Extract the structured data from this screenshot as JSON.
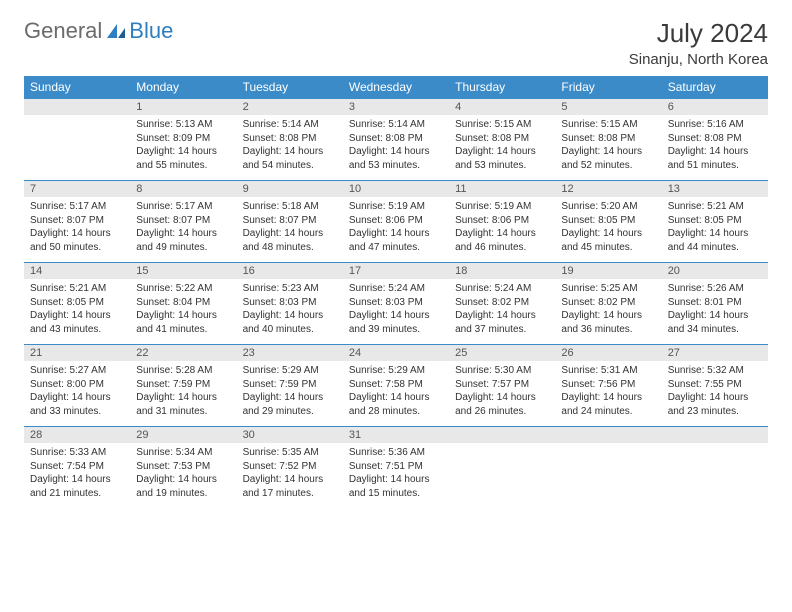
{
  "logo": {
    "general": "General",
    "blue": "Blue"
  },
  "title": "July 2024",
  "location": "Sinanju, North Korea",
  "colors": {
    "header_bg": "#3b8bc9",
    "header_text": "#ffffff",
    "daynum_bg": "#e8e8e8",
    "border": "#3b8bc9",
    "logo_gray": "#6b6b6b",
    "logo_blue": "#2e7fc1"
  },
  "dow": [
    "Sunday",
    "Monday",
    "Tuesday",
    "Wednesday",
    "Thursday",
    "Friday",
    "Saturday"
  ],
  "weeks": [
    [
      {
        "n": "",
        "l1": "",
        "l2": "",
        "l3": "",
        "l4": ""
      },
      {
        "n": "1",
        "l1": "Sunrise: 5:13 AM",
        "l2": "Sunset: 8:09 PM",
        "l3": "Daylight: 14 hours",
        "l4": "and 55 minutes."
      },
      {
        "n": "2",
        "l1": "Sunrise: 5:14 AM",
        "l2": "Sunset: 8:08 PM",
        "l3": "Daylight: 14 hours",
        "l4": "and 54 minutes."
      },
      {
        "n": "3",
        "l1": "Sunrise: 5:14 AM",
        "l2": "Sunset: 8:08 PM",
        "l3": "Daylight: 14 hours",
        "l4": "and 53 minutes."
      },
      {
        "n": "4",
        "l1": "Sunrise: 5:15 AM",
        "l2": "Sunset: 8:08 PM",
        "l3": "Daylight: 14 hours",
        "l4": "and 53 minutes."
      },
      {
        "n": "5",
        "l1": "Sunrise: 5:15 AM",
        "l2": "Sunset: 8:08 PM",
        "l3": "Daylight: 14 hours",
        "l4": "and 52 minutes."
      },
      {
        "n": "6",
        "l1": "Sunrise: 5:16 AM",
        "l2": "Sunset: 8:08 PM",
        "l3": "Daylight: 14 hours",
        "l4": "and 51 minutes."
      }
    ],
    [
      {
        "n": "7",
        "l1": "Sunrise: 5:17 AM",
        "l2": "Sunset: 8:07 PM",
        "l3": "Daylight: 14 hours",
        "l4": "and 50 minutes."
      },
      {
        "n": "8",
        "l1": "Sunrise: 5:17 AM",
        "l2": "Sunset: 8:07 PM",
        "l3": "Daylight: 14 hours",
        "l4": "and 49 minutes."
      },
      {
        "n": "9",
        "l1": "Sunrise: 5:18 AM",
        "l2": "Sunset: 8:07 PM",
        "l3": "Daylight: 14 hours",
        "l4": "and 48 minutes."
      },
      {
        "n": "10",
        "l1": "Sunrise: 5:19 AM",
        "l2": "Sunset: 8:06 PM",
        "l3": "Daylight: 14 hours",
        "l4": "and 47 minutes."
      },
      {
        "n": "11",
        "l1": "Sunrise: 5:19 AM",
        "l2": "Sunset: 8:06 PM",
        "l3": "Daylight: 14 hours",
        "l4": "and 46 minutes."
      },
      {
        "n": "12",
        "l1": "Sunrise: 5:20 AM",
        "l2": "Sunset: 8:05 PM",
        "l3": "Daylight: 14 hours",
        "l4": "and 45 minutes."
      },
      {
        "n": "13",
        "l1": "Sunrise: 5:21 AM",
        "l2": "Sunset: 8:05 PM",
        "l3": "Daylight: 14 hours",
        "l4": "and 44 minutes."
      }
    ],
    [
      {
        "n": "14",
        "l1": "Sunrise: 5:21 AM",
        "l2": "Sunset: 8:05 PM",
        "l3": "Daylight: 14 hours",
        "l4": "and 43 minutes."
      },
      {
        "n": "15",
        "l1": "Sunrise: 5:22 AM",
        "l2": "Sunset: 8:04 PM",
        "l3": "Daylight: 14 hours",
        "l4": "and 41 minutes."
      },
      {
        "n": "16",
        "l1": "Sunrise: 5:23 AM",
        "l2": "Sunset: 8:03 PM",
        "l3": "Daylight: 14 hours",
        "l4": "and 40 minutes."
      },
      {
        "n": "17",
        "l1": "Sunrise: 5:24 AM",
        "l2": "Sunset: 8:03 PM",
        "l3": "Daylight: 14 hours",
        "l4": "and 39 minutes."
      },
      {
        "n": "18",
        "l1": "Sunrise: 5:24 AM",
        "l2": "Sunset: 8:02 PM",
        "l3": "Daylight: 14 hours",
        "l4": "and 37 minutes."
      },
      {
        "n": "19",
        "l1": "Sunrise: 5:25 AM",
        "l2": "Sunset: 8:02 PM",
        "l3": "Daylight: 14 hours",
        "l4": "and 36 minutes."
      },
      {
        "n": "20",
        "l1": "Sunrise: 5:26 AM",
        "l2": "Sunset: 8:01 PM",
        "l3": "Daylight: 14 hours",
        "l4": "and 34 minutes."
      }
    ],
    [
      {
        "n": "21",
        "l1": "Sunrise: 5:27 AM",
        "l2": "Sunset: 8:00 PM",
        "l3": "Daylight: 14 hours",
        "l4": "and 33 minutes."
      },
      {
        "n": "22",
        "l1": "Sunrise: 5:28 AM",
        "l2": "Sunset: 7:59 PM",
        "l3": "Daylight: 14 hours",
        "l4": "and 31 minutes."
      },
      {
        "n": "23",
        "l1": "Sunrise: 5:29 AM",
        "l2": "Sunset: 7:59 PM",
        "l3": "Daylight: 14 hours",
        "l4": "and 29 minutes."
      },
      {
        "n": "24",
        "l1": "Sunrise: 5:29 AM",
        "l2": "Sunset: 7:58 PM",
        "l3": "Daylight: 14 hours",
        "l4": "and 28 minutes."
      },
      {
        "n": "25",
        "l1": "Sunrise: 5:30 AM",
        "l2": "Sunset: 7:57 PM",
        "l3": "Daylight: 14 hours",
        "l4": "and 26 minutes."
      },
      {
        "n": "26",
        "l1": "Sunrise: 5:31 AM",
        "l2": "Sunset: 7:56 PM",
        "l3": "Daylight: 14 hours",
        "l4": "and 24 minutes."
      },
      {
        "n": "27",
        "l1": "Sunrise: 5:32 AM",
        "l2": "Sunset: 7:55 PM",
        "l3": "Daylight: 14 hours",
        "l4": "and 23 minutes."
      }
    ],
    [
      {
        "n": "28",
        "l1": "Sunrise: 5:33 AM",
        "l2": "Sunset: 7:54 PM",
        "l3": "Daylight: 14 hours",
        "l4": "and 21 minutes."
      },
      {
        "n": "29",
        "l1": "Sunrise: 5:34 AM",
        "l2": "Sunset: 7:53 PM",
        "l3": "Daylight: 14 hours",
        "l4": "and 19 minutes."
      },
      {
        "n": "30",
        "l1": "Sunrise: 5:35 AM",
        "l2": "Sunset: 7:52 PM",
        "l3": "Daylight: 14 hours",
        "l4": "and 17 minutes."
      },
      {
        "n": "31",
        "l1": "Sunrise: 5:36 AM",
        "l2": "Sunset: 7:51 PM",
        "l3": "Daylight: 14 hours",
        "l4": "and 15 minutes."
      },
      {
        "n": "",
        "l1": "",
        "l2": "",
        "l3": "",
        "l4": ""
      },
      {
        "n": "",
        "l1": "",
        "l2": "",
        "l3": "",
        "l4": ""
      },
      {
        "n": "",
        "l1": "",
        "l2": "",
        "l3": "",
        "l4": ""
      }
    ]
  ]
}
